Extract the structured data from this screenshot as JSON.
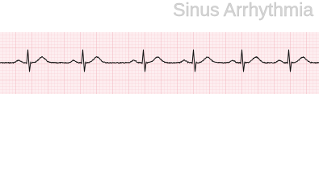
{
  "header": {
    "title": "Sinus Arrhythmia"
  }
}
